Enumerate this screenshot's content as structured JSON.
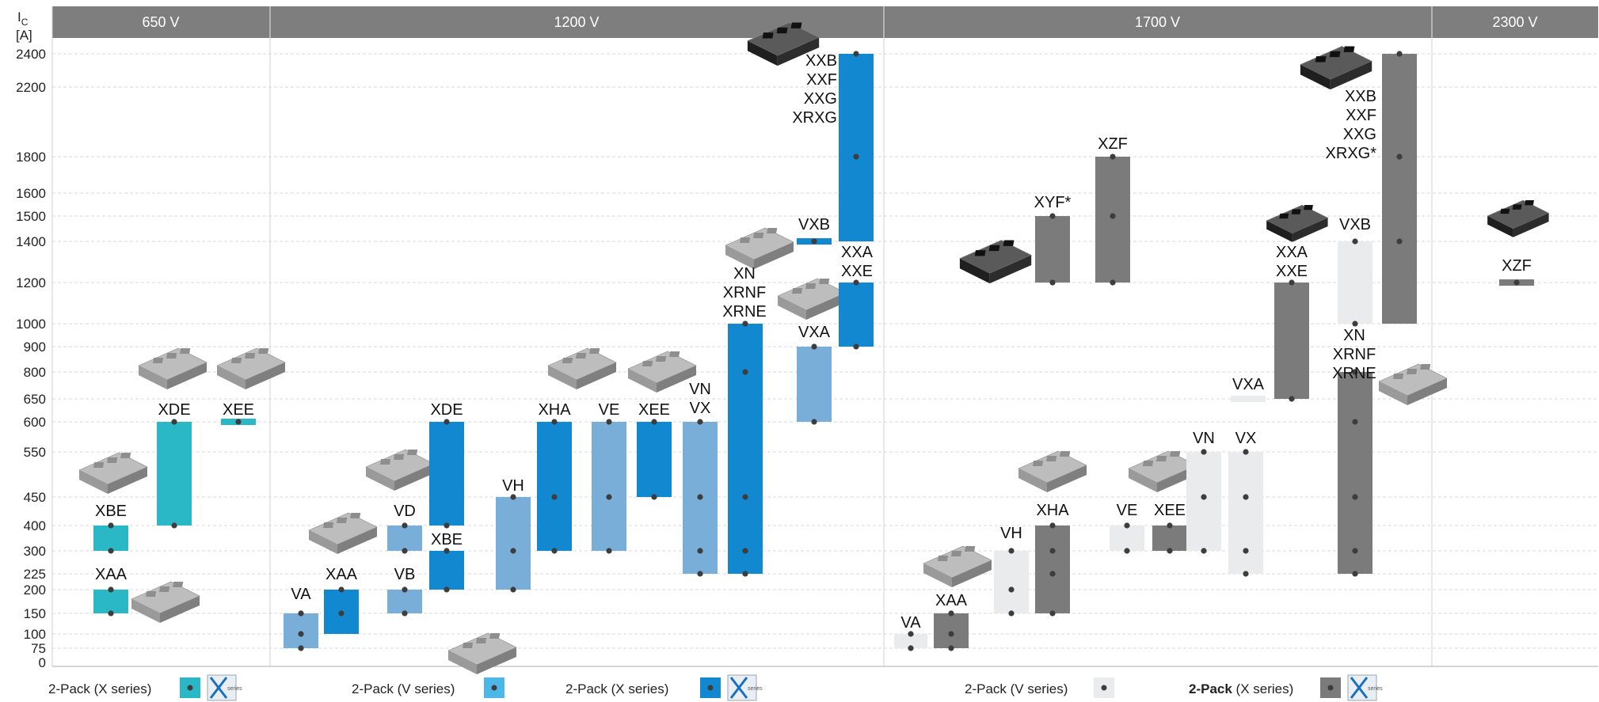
{
  "chart_data": {
    "type": "bar",
    "title": "",
    "ylabel_main": "I",
    "ylabel_sub": "C",
    "yunit": "[A]",
    "yticks": [
      "0",
      "75",
      "100",
      "150",
      "200",
      "225",
      "300",
      "400",
      "450",
      "550",
      "600",
      "650",
      "800",
      "900",
      "1000",
      "1200",
      "1400",
      "1500",
      "1600",
      "1800",
      "2200",
      "2400"
    ],
    "voltage_groups": [
      "650 V",
      "1200 V",
      "1700 V",
      "2300 V"
    ],
    "colors": {
      "teal": "#2bb8c6",
      "lightblue": "#79aed8",
      "blue": "#1288d0",
      "lightgray": "#e9ebed",
      "gray": "#7b7b7b",
      "header": "#7e7e7e"
    },
    "bars": [
      {
        "group": "650 V",
        "series": "2-Pack (X series)",
        "label": [
          "XBE"
        ],
        "low": 300,
        "high": 400,
        "dots": [
          300,
          400
        ]
      },
      {
        "group": "650 V",
        "series": "2-Pack (X series)",
        "label": [
          "XAA"
        ],
        "low": 150,
        "high": 200,
        "dots": [
          150,
          200
        ]
      },
      {
        "group": "650 V",
        "series": "2-Pack (X series)",
        "label": [
          "XDE"
        ],
        "low": 400,
        "high": 600,
        "dots": [
          400,
          600
        ]
      },
      {
        "group": "650 V",
        "series": "2-Pack (X series)",
        "label": [
          "XEE"
        ],
        "low": 600,
        "high": 600,
        "dots": [
          600
        ]
      },
      {
        "group": "1200 V",
        "series": "2-Pack (V series)",
        "label": [
          "VA"
        ],
        "low": 75,
        "high": 150,
        "dots": [
          75,
          100,
          150
        ]
      },
      {
        "group": "1200 V",
        "series": "2-Pack (X series)",
        "label": [
          "XAA"
        ],
        "low": 100,
        "high": 200,
        "dots": [
          150,
          200
        ]
      },
      {
        "group": "1200 V",
        "series": "2-Pack (V series)",
        "label": [
          "VB"
        ],
        "low": 150,
        "high": 200,
        "dots": [
          150,
          200
        ]
      },
      {
        "group": "1200 V",
        "series": "2-Pack (V series)",
        "label": [
          "VD"
        ],
        "low": 300,
        "high": 400,
        "dots": [
          300,
          400
        ]
      },
      {
        "group": "1200 V",
        "series": "2-Pack (X series)",
        "label": [
          "XBE"
        ],
        "low": 200,
        "high": 300,
        "dots": [
          200,
          300
        ]
      },
      {
        "group": "1200 V",
        "series": "2-Pack (X series)",
        "label": [
          "XDE"
        ],
        "low": 400,
        "high": 600,
        "dots": [
          400,
          600
        ]
      },
      {
        "group": "1200 V",
        "series": "2-Pack (V series)",
        "label": [
          "VH"
        ],
        "low": 200,
        "high": 450,
        "dots": [
          200,
          300,
          450
        ]
      },
      {
        "group": "1200 V",
        "series": "2-Pack (X series)",
        "label": [
          "XHA"
        ],
        "low": 300,
        "high": 600,
        "dots": [
          300,
          450,
          600
        ]
      },
      {
        "group": "1200 V",
        "series": "2-Pack (V series)",
        "label": [
          "VE"
        ],
        "low": 300,
        "high": 600,
        "dots": [
          300,
          450,
          600
        ]
      },
      {
        "group": "1200 V",
        "series": "2-Pack (X series)",
        "label": [
          "XEE"
        ],
        "low": 450,
        "high": 600,
        "dots": [
          450,
          600
        ]
      },
      {
        "group": "1200 V",
        "series": "2-Pack (V series)",
        "label": [
          "VN",
          "VX"
        ],
        "low": 225,
        "high": 600,
        "dots": [
          225,
          300,
          450,
          600
        ]
      },
      {
        "group": "1200 V",
        "series": "2-Pack (X series)",
        "label": [
          "XN",
          "XRNF",
          "XRNE"
        ],
        "low": 225,
        "high": 1000,
        "dots": [
          225,
          300,
          450,
          800,
          1000
        ]
      },
      {
        "group": "1200 V",
        "series": "2-Pack (V series)",
        "label": [
          "VXA"
        ],
        "low": 600,
        "high": 900,
        "dots": [
          600,
          900
        ]
      },
      {
        "group": "1200 V",
        "series": "2-Pack (X series)",
        "label": [
          "VXB"
        ],
        "low": 1400,
        "high": 1400,
        "dots": [
          1400
        ]
      },
      {
        "group": "1200 V",
        "series": "2-Pack (X series)",
        "label": [
          "XXA",
          "XXE"
        ],
        "low": 900,
        "high": 1200,
        "dots": [
          900,
          1200
        ]
      },
      {
        "group": "1200 V",
        "series": "2-Pack (X series)",
        "label": [
          "XXB",
          "XXF",
          "XXG",
          "XRXG"
        ],
        "low": 1400,
        "high": 2400,
        "dots": [
          1800,
          2400
        ]
      },
      {
        "group": "1700 V",
        "series": "2-Pack (V series)",
        "label": [
          "VA"
        ],
        "low": 75,
        "high": 100,
        "dots": [
          75,
          100
        ]
      },
      {
        "group": "1700 V",
        "series": "2-Pack (X series)",
        "label": [
          "XAA"
        ],
        "low": 75,
        "high": 150,
        "dots": [
          75,
          100,
          150
        ]
      },
      {
        "group": "1700 V",
        "series": "2-Pack (V series)",
        "label": [
          "VH"
        ],
        "low": 150,
        "high": 300,
        "dots": [
          150,
          200,
          300
        ]
      },
      {
        "group": "1700 V",
        "series": "2-Pack (X series)",
        "label": [
          "XHA"
        ],
        "low": 150,
        "high": 400,
        "dots": [
          150,
          225,
          300,
          400
        ]
      },
      {
        "group": "1700 V",
        "series": "2-Pack (V series)",
        "label": [
          "VE"
        ],
        "low": 300,
        "high": 400,
        "dots": [
          300,
          400
        ]
      },
      {
        "group": "1700 V",
        "series": "2-Pack (X series)",
        "label": [
          "XEE"
        ],
        "low": 300,
        "high": 400,
        "dots": [
          300,
          400
        ]
      },
      {
        "group": "1700 V",
        "series": "2-Pack (V series)",
        "label": [
          "VN"
        ],
        "low": 300,
        "high": 550,
        "dots": [
          300,
          450,
          550
        ]
      },
      {
        "group": "1700 V",
        "series": "2-Pack (V series)",
        "label": [
          "VX"
        ],
        "low": 225,
        "high": 550,
        "dots": [
          225,
          300,
          450,
          550
        ]
      },
      {
        "group": "1700 V",
        "series": "2-Pack (X series)",
        "label": [
          "XYF*"
        ],
        "low": 1200,
        "high": 1500,
        "dots": [
          1200,
          1500
        ]
      },
      {
        "group": "1700 V",
        "series": "2-Pack (X series)",
        "label": [
          "XZF"
        ],
        "low": 1200,
        "high": 1800,
        "dots": [
          1200,
          1500,
          1800
        ]
      },
      {
        "group": "1700 V",
        "series": "2-Pack (V series)",
        "label": [
          "VXA"
        ],
        "low": 650,
        "high": 650,
        "dots": []
      },
      {
        "group": "1700 V",
        "series": "2-Pack (X series)",
        "label": [
          "XXA",
          "XXE"
        ],
        "low": 650,
        "high": 1200,
        "dots": [
          650,
          1200
        ]
      },
      {
        "group": "1700 V",
        "series": "2-Pack (V series)",
        "label": [
          "VXB"
        ],
        "low": 1000,
        "high": 1400,
        "dots": [
          1000,
          1400
        ]
      },
      {
        "group": "1700 V",
        "series": "2-Pack (X series)",
        "label": [
          "XN",
          "XRNF",
          "XRNE"
        ],
        "low": 225,
        "high": 800,
        "dots": [
          225,
          300,
          450,
          600,
          800
        ]
      },
      {
        "group": "1700 V",
        "series": "2-Pack (X series)",
        "label": [
          "XXB",
          "XXF",
          "XXG",
          "XRXG*"
        ],
        "low": 1000,
        "high": 2400,
        "dots": [
          1400,
          1800,
          2400
        ]
      },
      {
        "group": "2300 V",
        "series": "2-Pack (X series)",
        "label": [
          "XZF"
        ],
        "low": 1200,
        "high": 1200,
        "dots": [
          1200
        ]
      }
    ],
    "legend": [
      {
        "text": "2-Pack (X series)",
        "group": "650 V",
        "bold": "",
        "badge": true
      },
      {
        "text": "2-Pack (V series)",
        "group": "1200 V",
        "bold": "",
        "badge": false
      },
      {
        "text": "2-Pack (X series)",
        "group": "1200 V",
        "bold": "",
        "badge": true
      },
      {
        "text": "2-Pack (V series)",
        "group": "1700 V",
        "bold": "",
        "badge": false
      },
      {
        "text": " (X series)",
        "group": "1700 V",
        "bold": "2-Pack",
        "badge": true
      }
    ],
    "badge_text": [
      "X",
      "series"
    ],
    "grid": true,
    "legend_position": "bottom"
  }
}
